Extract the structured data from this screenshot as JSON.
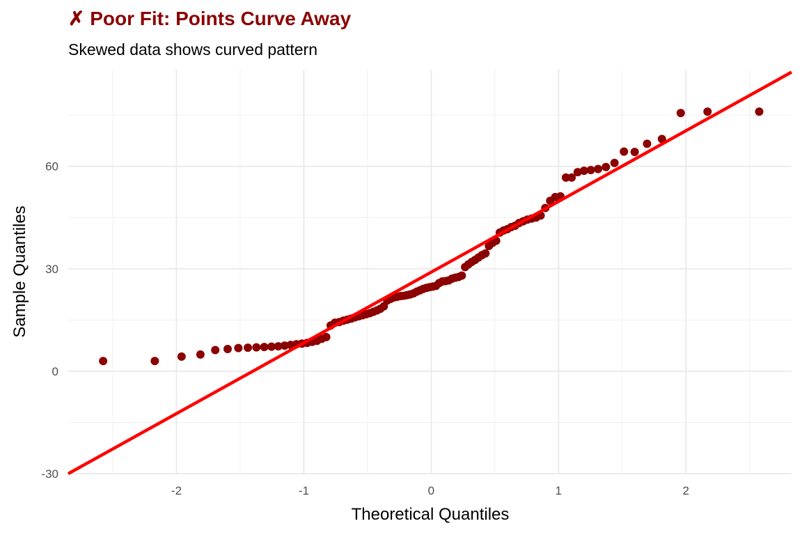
{
  "chart_data": {
    "type": "scatter",
    "title": "✗ Poor Fit: Points Curve Away",
    "subtitle": "Skewed data shows curved pattern",
    "xlabel": "Theoretical Quantiles",
    "ylabel": "Sample Quantiles",
    "xlim": [
      -2.85,
      2.83
    ],
    "ylim": [
      -30,
      88.3
    ],
    "x_ticks": [
      -2,
      -1,
      0,
      1,
      2
    ],
    "x_tick_labels": [
      "-2",
      "-1",
      "0",
      "1",
      "2"
    ],
    "y_ticks": [
      -30,
      0,
      30,
      60
    ],
    "y_tick_labels": [
      "-30",
      "0",
      "30",
      "60"
    ],
    "grid": true,
    "n": 100,
    "point_color": "#8b0000",
    "line_color": "#ff0000",
    "reference_line": {
      "intercept": 29.0,
      "slope": 20.7
    },
    "sample_values": [
      3.0,
      3.0,
      4.3,
      4.9,
      6.2,
      6.5,
      6.8,
      6.9,
      7.0,
      7.1,
      7.2,
      7.3,
      7.5,
      7.7,
      7.9,
      8.1,
      8.3,
      8.6,
      8.9,
      9.5,
      10.0,
      13.4,
      14.2,
      14.4,
      14.8,
      15.1,
      15.4,
      15.8,
      16.1,
      16.4,
      16.7,
      17.0,
      17.4,
      17.8,
      18.3,
      19.0,
      20.7,
      21.2,
      21.6,
      21.8,
      22.0,
      22.1,
      22.3,
      22.5,
      22.8,
      23.3,
      23.7,
      24.1,
      24.4,
      24.6,
      24.8,
      25.0,
      25.8,
      26.3,
      26.4,
      26.6,
      27.1,
      27.4,
      27.6,
      28.0,
      30.5,
      31.3,
      32.0,
      32.6,
      33.3,
      34.0,
      34.5,
      36.7,
      37.6,
      38.2,
      40.6,
      41.2,
      41.6,
      42.2,
      42.6,
      43.4,
      43.9,
      44.4,
      44.7,
      45.0,
      45.6,
      47.8,
      49.9,
      51.0,
      51.2,
      56.7,
      56.7,
      58.3,
      58.7,
      58.9,
      59.2,
      59.8,
      61.0,
      64.3,
      64.2,
      66.6,
      68.0,
      75.6,
      76.0,
      76.0
    ]
  }
}
